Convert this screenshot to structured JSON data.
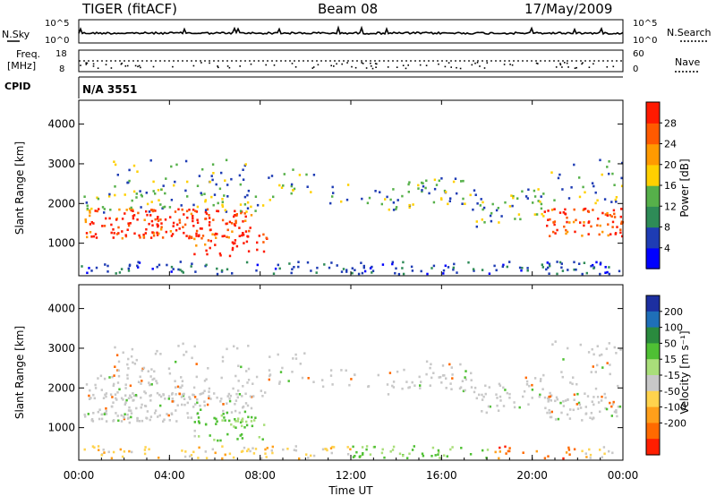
{
  "header": {
    "station": "TIGER (fitACF)",
    "beam": "Beam 08",
    "date": "17/May/2009"
  },
  "strip": {
    "nsky_label": "N.Sky",
    "nsky_top": "10^5",
    "nsky_bot": "10^0",
    "nsearch_label": "N.Search",
    "nsearch_top": "10^5",
    "nsearch_bot": "10^0",
    "freq_label_1": "Freq.",
    "freq_label_2": "[MHz]",
    "freq_top": "18",
    "freq_bot": "8",
    "nave_label": "Nave",
    "nave_top": "60",
    "nave_bot": "0",
    "cpid_label": "CPID",
    "cpid_value": "N/A 3551"
  },
  "chart_data": [
    {
      "type": "heatmap",
      "quantity": "Power",
      "ylabel": "Slant Range [km]",
      "ylim": [
        180,
        4600
      ],
      "yticks": [
        1000,
        2000,
        3000,
        4000
      ],
      "colorbar_label": "Power [dB]",
      "colorbar_ticks": [
        4,
        8,
        12,
        16,
        20,
        24,
        28
      ],
      "colorbar_colors": [
        "#0000ff",
        "#1e3cb4",
        "#2e8b57",
        "#56b04a",
        "#ffd000",
        "#ff9a00",
        "#ff5a00",
        "#ff1a00"
      ]
    },
    {
      "type": "heatmap",
      "quantity": "Velocity",
      "ylabel": "Slant Range [km]",
      "ylim": [
        180,
        4600
      ],
      "yticks": [
        1000,
        2000,
        3000,
        4000
      ],
      "colorbar_label": "Velocity [m s⁻¹]",
      "colorbar_ticks": [
        200,
        100,
        50,
        15,
        -15,
        -50,
        -100,
        -200
      ],
      "colorbar_colors": [
        "#1c2fa0",
        "#1f6fb8",
        "#2a8a3e",
        "#4fc034",
        "#a9de7a",
        "#c8c8c8",
        "#ffd34d",
        "#ff9f1a",
        "#ff6a00",
        "#ff1e00"
      ]
    }
  ],
  "xaxis": {
    "label": "Time UT",
    "ticks": [
      "00:00",
      "04:00",
      "08:00",
      "12:00",
      "16:00",
      "20:00",
      "00:00"
    ]
  }
}
